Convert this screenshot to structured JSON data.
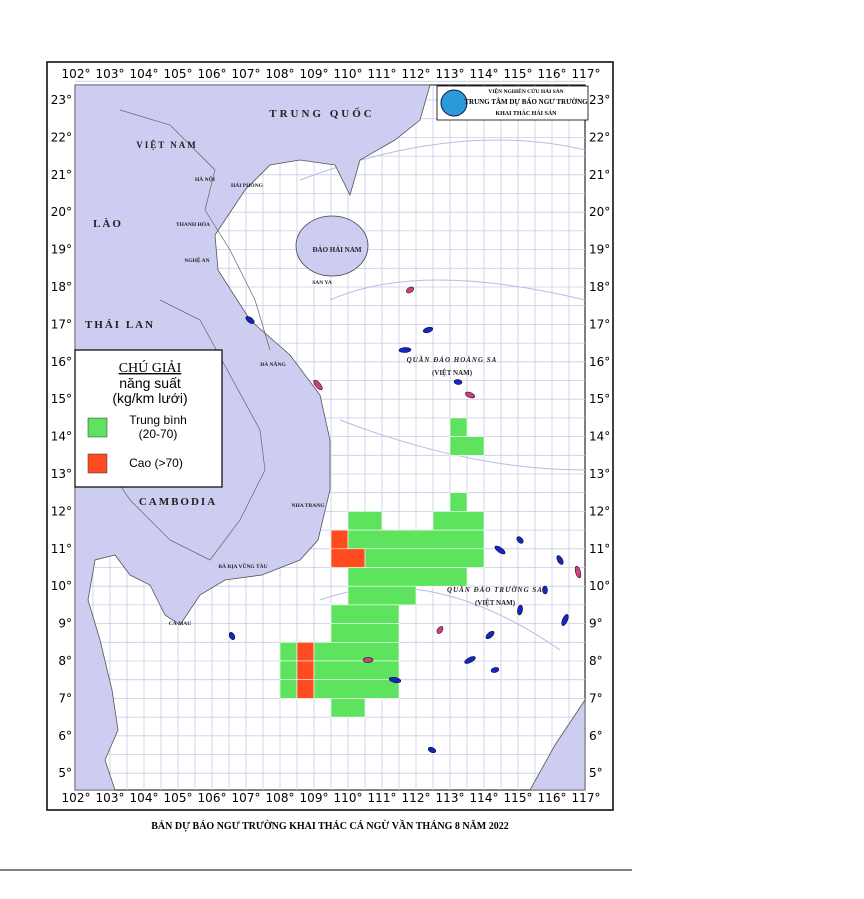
{
  "map": {
    "lon_ticks": [
      "102°",
      "103°",
      "104°",
      "105°",
      "106°",
      "107°",
      "108°",
      "109°",
      "110°",
      "111°",
      "112°",
      "113°",
      "114°",
      "115°",
      "116°",
      "117°"
    ],
    "lat_ticks": [
      "23°",
      "22°",
      "21°",
      "20°",
      "19°",
      "18°",
      "17°",
      "16°",
      "15°",
      "14°",
      "13°",
      "12°",
      "11°",
      "10°",
      "9°",
      "8°",
      "7°",
      "6°",
      "5°"
    ],
    "header": {
      "line1": "VIỆN NGHIÊN CỨU HẢI SẢN",
      "line2": "TRUNG TÂM DỰ BÁO NGƯ TRƯỜNG",
      "line3": "KHAI THÁC HẢI SẢN"
    },
    "places": [
      "TRUNG QUỐC",
      "VIỆT NAM",
      "LÀO",
      "THÁI LAN",
      "CAMBODIA",
      "ĐẢO HẢI NAM",
      "HÀ NỘI",
      "HẢI PHÒNG",
      "THANH HÓA",
      "NGHỆ AN",
      "ĐÀ NẴNG",
      "NHA TRANG",
      "BÀ RỊA VŨNG TÀU",
      "CÀ MAU",
      "SAN YA",
      "QUẦN ĐẢO HOÀNG SA",
      "(VIỆT NAM)",
      "QUẦN ĐẢO TRƯỜNG SA",
      "(VIỆT NAM)"
    ],
    "legend": {
      "title": "CHÚ GIẢI",
      "subtitle1": "năng suất",
      "subtitle2": "(kg/km lưới)",
      "medium": "Trung bình",
      "medium_range": "(20-70)",
      "high": "Cao (>70)"
    },
    "caption": "BẢN DỰ BÁO NGƯ TRƯỜNG KHAI THÁC CÁ NGỪ VẦN THÁNG 8 NĂM 2022"
  }
}
